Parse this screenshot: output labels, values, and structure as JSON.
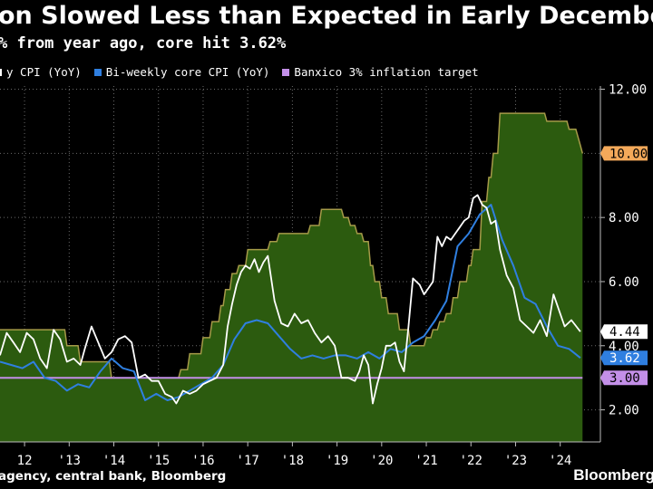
{
  "header": {
    "title": "on Slowed Less than Expected in Early December",
    "subtitle": "% from year ago, core hit 3.62%"
  },
  "legend": [
    {
      "label": "y CPI (YoY)",
      "color": "#ffffff"
    },
    {
      "label": "Bi-weekly core CPI (YoY)",
      "color": "#2f7fe0"
    },
    {
      "label": "Banxico 3% inflation target",
      "color": "#c38fe8"
    }
  ],
  "footer": {
    "source": "agency, central bank, Bloomberg",
    "brand": "Bloomberg"
  },
  "colors": {
    "area_fill": "#2c5b0f",
    "area_stroke": "#a59a48",
    "headline": "#ffffff",
    "core": "#2f7fe0",
    "target": "#c38fe8",
    "rate_label": "#f4a95a"
  },
  "chart_data": {
    "type": "line",
    "x_ticks": [
      "12",
      "'13",
      "'14",
      "'15",
      "'16",
      "'17",
      "'18",
      "'19",
      "'20",
      "'21",
      "'22",
      "'23",
      "'24"
    ],
    "y_ticks": [
      "2.00",
      "4.00",
      "6.00",
      "8.00",
      "10.00",
      "12.00"
    ],
    "ylim": [
      1.0,
      12.1
    ],
    "xlim": [
      2011.95,
      2025.4
    ],
    "last_values": {
      "rate": "10.00",
      "headline": "4.44",
      "core": "3.62",
      "target": "3.00"
    },
    "series": [
      {
        "key": "rate",
        "kind": "area",
        "x": [
          2011.9,
          2013.4,
          2013.45,
          2013.7,
          2013.75,
          2014.4,
          2014.45,
          2015.95,
          2016.0,
          2016.15,
          2016.2,
          2016.45,
          2016.5,
          2016.65,
          2016.7,
          2016.85,
          2016.9,
          2016.95,
          2017.0,
          2017.1,
          2017.15,
          2017.25,
          2017.3,
          2017.45,
          2017.5,
          2017.95,
          2018.0,
          2018.15,
          2018.2,
          2018.85,
          2018.9,
          2019.1,
          2019.15,
          2019.6,
          2019.65,
          2019.75,
          2019.8,
          2019.9,
          2019.95,
          2020.05,
          2020.1,
          2020.2,
          2020.25,
          2020.3,
          2020.35,
          2020.45,
          2020.5,
          2020.6,
          2020.65,
          2020.85,
          2020.9,
          2021.1,
          2021.15,
          2021.45,
          2021.5,
          2021.6,
          2021.65,
          2021.75,
          2021.8,
          2021.9,
          2021.95,
          2022.05,
          2022.1,
          2022.2,
          2022.25,
          2022.4,
          2022.45,
          2022.5,
          2022.55,
          2022.7,
          2022.75,
          2022.85,
          2022.9,
          2022.95,
          2023.0,
          2023.1,
          2023.15,
          2024.15,
          2024.2,
          2024.45,
          2024.5,
          2024.65,
          2024.7,
          2024.85,
          2024.9,
          2024.95,
          2025.0
        ],
        "y": [
          4.5,
          4.5,
          4.0,
          4.0,
          3.5,
          3.5,
          3.0,
          3.0,
          3.25,
          3.25,
          3.75,
          3.75,
          4.25,
          4.25,
          4.75,
          4.75,
          5.25,
          5.25,
          5.75,
          5.75,
          6.25,
          6.25,
          6.5,
          6.5,
          7.0,
          7.0,
          7.25,
          7.25,
          7.5,
          7.5,
          7.75,
          7.75,
          8.25,
          8.25,
          8.0,
          8.0,
          7.75,
          7.75,
          7.5,
          7.5,
          7.25,
          7.25,
          6.5,
          6.5,
          6.0,
          6.0,
          5.5,
          5.5,
          5.0,
          5.0,
          4.5,
          4.5,
          4.0,
          4.0,
          4.25,
          4.25,
          4.5,
          4.5,
          4.75,
          4.75,
          5.0,
          5.0,
          5.5,
          5.5,
          6.0,
          6.0,
          6.5,
          6.5,
          7.0,
          7.0,
          8.5,
          8.5,
          9.25,
          9.25,
          10.0,
          10.0,
          11.25,
          11.25,
          11.0,
          11.0,
          11.0,
          11.0,
          10.75,
          10.75,
          10.5,
          10.25,
          10.0
        ]
      },
      {
        "key": "headline",
        "kind": "line",
        "x": [
          2011.95,
          2012.1,
          2012.25,
          2012.4,
          2012.55,
          2012.7,
          2012.85,
          2013.0,
          2013.15,
          2013.3,
          2013.45,
          2013.6,
          2013.75,
          2013.85,
          2014.0,
          2014.15,
          2014.3,
          2014.45,
          2014.6,
          2014.75,
          2014.9,
          2015.05,
          2015.2,
          2015.35,
          2015.5,
          2015.65,
          2015.8,
          2015.9,
          2016.05,
          2016.2,
          2016.35,
          2016.5,
          2016.65,
          2016.8,
          2016.95,
          2017.05,
          2017.15,
          2017.25,
          2017.35,
          2017.45,
          2017.55,
          2017.65,
          2017.75,
          2017.85,
          2017.95,
          2018.1,
          2018.25,
          2018.4,
          2018.55,
          2018.7,
          2018.85,
          2019.0,
          2019.15,
          2019.3,
          2019.45,
          2019.6,
          2019.75,
          2019.9,
          2020.0,
          2020.1,
          2020.2,
          2020.3,
          2020.4,
          2020.5,
          2020.6,
          2020.7,
          2020.8,
          2020.9,
          2021.0,
          2021.1,
          2021.2,
          2021.35,
          2021.45,
          2021.55,
          2021.65,
          2021.75,
          2021.85,
          2021.95,
          2022.05,
          2022.15,
          2022.25,
          2022.35,
          2022.45,
          2022.55,
          2022.65,
          2022.75,
          2022.85,
          2022.95,
          2023.05,
          2023.15,
          2023.3,
          2023.45,
          2023.6,
          2023.75,
          2023.9,
          2024.05,
          2024.2,
          2024.35,
          2024.5,
          2024.6,
          2024.75,
          2024.95
        ],
        "y": [
          3.7,
          4.4,
          4.1,
          3.8,
          4.4,
          4.2,
          3.6,
          3.3,
          4.5,
          4.2,
          3.5,
          3.6,
          3.4,
          3.9,
          4.6,
          4.1,
          3.6,
          3.8,
          4.2,
          4.3,
          4.1,
          3.0,
          3.1,
          2.9,
          2.9,
          2.5,
          2.4,
          2.2,
          2.6,
          2.5,
          2.6,
          2.8,
          2.9,
          3.0,
          3.4,
          4.6,
          5.3,
          5.9,
          6.3,
          6.5,
          6.4,
          6.7,
          6.3,
          6.6,
          6.8,
          5.4,
          4.7,
          4.6,
          5.0,
          4.7,
          4.8,
          4.4,
          4.1,
          4.3,
          4.0,
          3.0,
          3.0,
          2.9,
          3.2,
          3.7,
          3.4,
          2.2,
          2.8,
          3.3,
          4.0,
          4.0,
          4.1,
          3.5,
          3.2,
          4.6,
          6.1,
          5.9,
          5.6,
          5.8,
          6.0,
          7.4,
          7.1,
          7.4,
          7.3,
          7.5,
          7.7,
          7.9,
          8.0,
          8.6,
          8.7,
          8.4,
          8.3,
          7.8,
          7.9,
          7.0,
          6.2,
          5.8,
          4.8,
          4.6,
          4.4,
          4.8,
          4.3,
          5.6,
          5.0,
          4.6,
          4.8,
          4.44
        ]
      },
      {
        "key": "core",
        "kind": "line",
        "x": [
          2011.95,
          2012.2,
          2012.45,
          2012.7,
          2012.95,
          2013.2,
          2013.45,
          2013.7,
          2013.95,
          2014.2,
          2014.45,
          2014.7,
          2014.95,
          2015.2,
          2015.45,
          2015.7,
          2015.95,
          2016.2,
          2016.45,
          2016.7,
          2016.95,
          2017.2,
          2017.45,
          2017.7,
          2017.95,
          2018.2,
          2018.45,
          2018.7,
          2018.95,
          2019.2,
          2019.45,
          2019.7,
          2019.95,
          2020.2,
          2020.45,
          2020.7,
          2020.95,
          2021.2,
          2021.45,
          2021.7,
          2021.95,
          2022.2,
          2022.45,
          2022.7,
          2022.95,
          2023.2,
          2023.45,
          2023.7,
          2023.95,
          2024.2,
          2024.45,
          2024.7,
          2024.95
        ],
        "y": [
          3.5,
          3.4,
          3.3,
          3.5,
          3.0,
          2.9,
          2.6,
          2.8,
          2.7,
          3.2,
          3.6,
          3.3,
          3.2,
          2.3,
          2.5,
          2.3,
          2.4,
          2.6,
          2.8,
          3.0,
          3.4,
          4.2,
          4.7,
          4.8,
          4.7,
          4.3,
          3.9,
          3.6,
          3.7,
          3.6,
          3.7,
          3.7,
          3.6,
          3.8,
          3.6,
          3.9,
          3.8,
          4.1,
          4.3,
          4.8,
          5.4,
          7.1,
          7.5,
          8.1,
          8.4,
          7.3,
          6.5,
          5.5,
          5.3,
          4.6,
          4.0,
          3.9,
          3.62
        ]
      },
      {
        "key": "target",
        "kind": "line",
        "x": [
          2011.9,
          2025.0
        ],
        "y": [
          3.0,
          3.0
        ]
      }
    ]
  }
}
